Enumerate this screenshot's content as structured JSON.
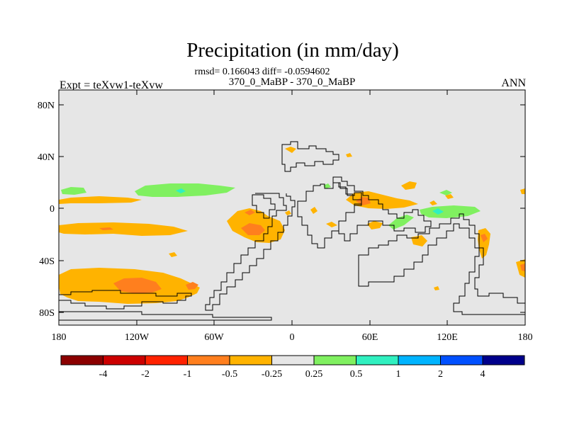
{
  "chart_data": {
    "type": "heatmap",
    "title": "Precipitation (in mm/day)",
    "subtitle": "rmsd= 0.166043 diff= -0.0594602",
    "left_label": "Expt = teXvw1-teXvw",
    "center_label": "370_0_MaBP - 370_0_MaBP",
    "right_label": "ANN",
    "x_ticks": [
      "180",
      "120W",
      "60W",
      "0",
      "60E",
      "120E",
      "180"
    ],
    "x_tick_values": [
      -180,
      -120,
      -60,
      0,
      60,
      120,
      180
    ],
    "y_ticks": [
      "80N",
      "40N",
      "0",
      "40S",
      "80S"
    ],
    "y_tick_values": [
      80,
      40,
      0,
      -40,
      -80
    ],
    "xlim": [
      -180,
      180
    ],
    "ylim": [
      -90,
      90
    ],
    "colorbar": {
      "labels": [
        "-4",
        "-2",
        "-1",
        "-0.5",
        "-0.25",
        "0.25",
        "0.5",
        "1",
        "2",
        "4"
      ],
      "colors": [
        "#8b0000",
        "#cc0000",
        "#ff2200",
        "#ff7f1e",
        "#ffb300",
        "#e6e6e6",
        "#80f060",
        "#30f0c0",
        "#00b4ff",
        "#0050ff",
        "#00008b"
      ]
    },
    "regions": [
      {
        "level": "-0.5 to -0.25",
        "lon": -165,
        "lat": 7,
        "note": "band near equator west"
      },
      {
        "level": "-0.5 to -0.25",
        "lon": -150,
        "lat": -16,
        "note": "south pacific band"
      },
      {
        "level": "-0.5 to -0.25",
        "lon": -155,
        "lat": -60,
        "note": "southern ocean patch"
      },
      {
        "level": "-1 to -0.5",
        "lon": -150,
        "lat": -60,
        "note": "southern ocean core"
      },
      {
        "level": "-0.5 to -0.25",
        "lon": -35,
        "lat": -12,
        "note": "atlantic patch"
      },
      {
        "level": "-1 to -0.5",
        "lon": -32,
        "lat": -15,
        "note": "atlantic core"
      },
      {
        "level": "-0.5 to -0.25",
        "lon": 60,
        "lat": 5,
        "note": "eastern patch"
      },
      {
        "level": "-1 to -0.5",
        "lon": 58,
        "lat": 5,
        "note": "eastern core"
      },
      {
        "level": "0.25 to 0.5",
        "lon": -110,
        "lat": 12,
        "note": "northern green band"
      },
      {
        "level": "0.5 to 1",
        "lon": -110,
        "lat": 12,
        "note": "cyan core"
      },
      {
        "level": "0.25 to 0.5",
        "lon": 110,
        "lat": -2,
        "note": "eastern green band"
      },
      {
        "level": "0.5 to 1",
        "lon": 110,
        "lat": -3,
        "note": "eastern cyan core"
      },
      {
        "level": "-0.5 to -0.25",
        "lon": 150,
        "lat": -25,
        "note": "western pacific patch"
      },
      {
        "level": "-0.5 to -0.25",
        "lon": 178,
        "lat": -45,
        "note": "right edge patch"
      }
    ]
  }
}
